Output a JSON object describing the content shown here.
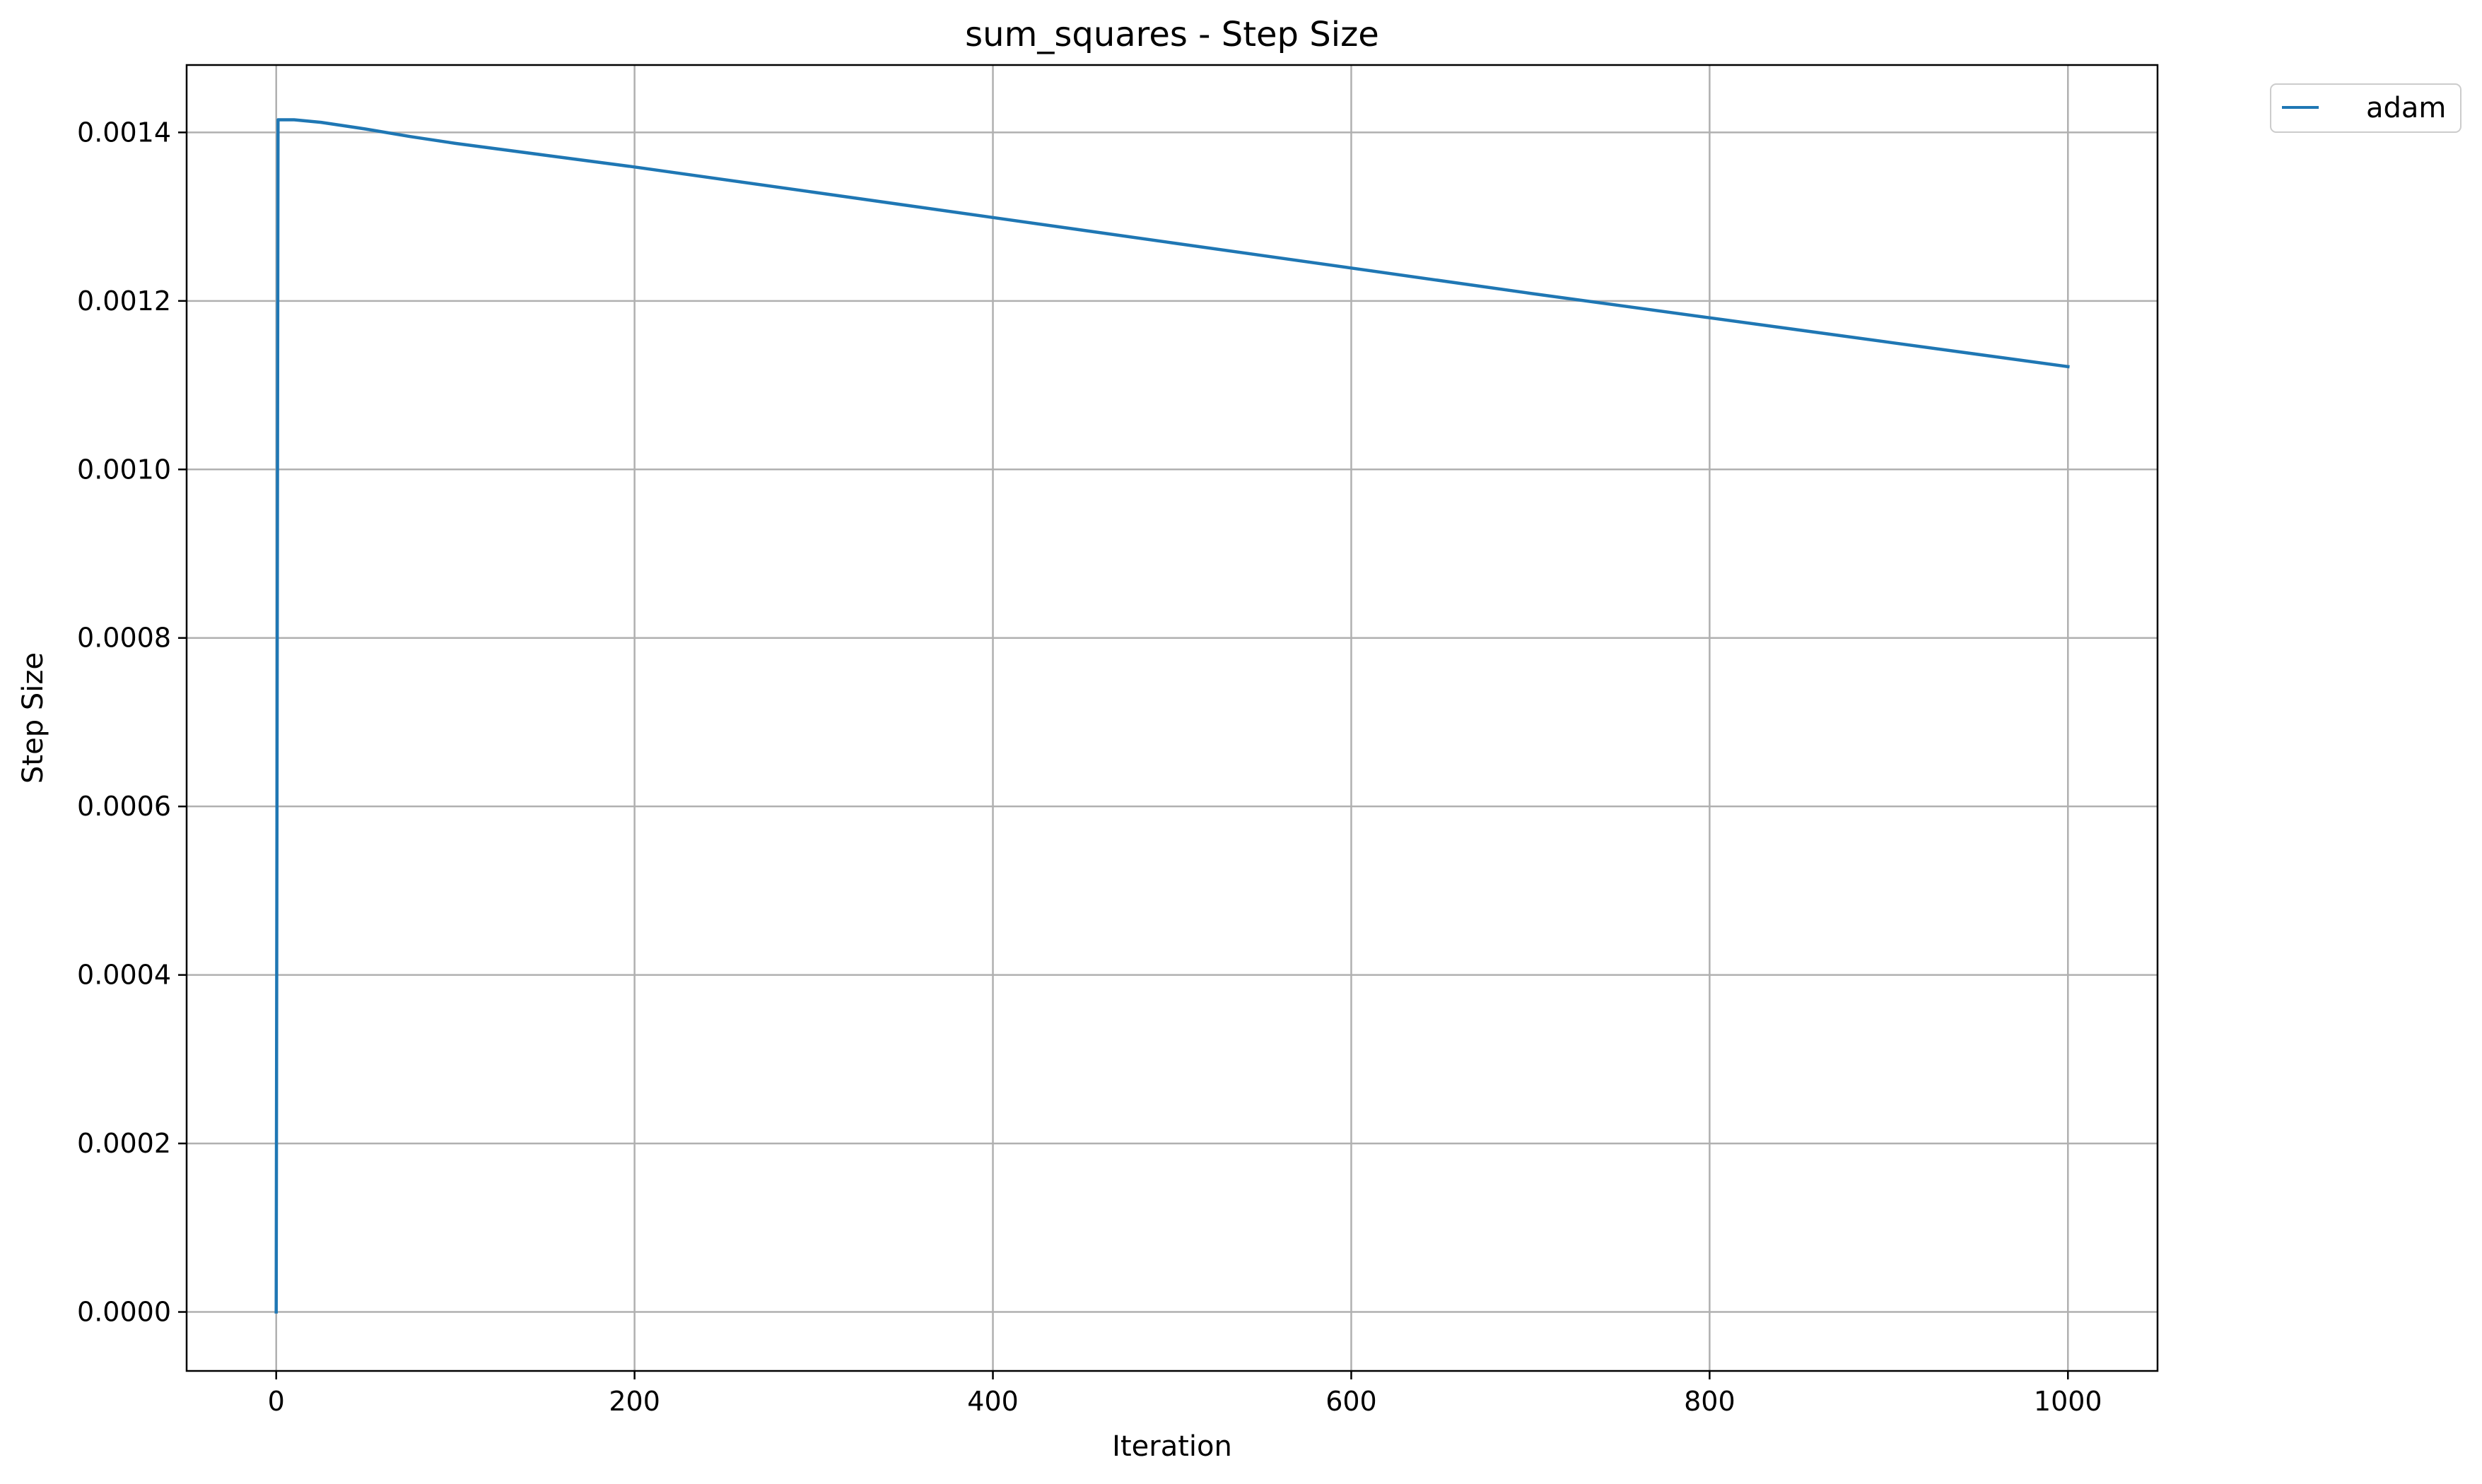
{
  "chart_data": {
    "type": "line",
    "title": "sum_squares - Step Size",
    "xlabel": "Iteration",
    "ylabel": "Step Size",
    "xlim": [
      -50,
      1050
    ],
    "ylim": [
      -7e-05,
      0.00148
    ],
    "xticks": [
      0,
      200,
      400,
      600,
      800,
      1000
    ],
    "xtick_labels": [
      "0",
      "200",
      "400",
      "600",
      "800",
      "1000"
    ],
    "yticks": [
      0.0,
      0.0002,
      0.0004,
      0.0006,
      0.0008,
      0.001,
      0.0012,
      0.0014
    ],
    "ytick_labels": [
      "0.0000",
      "0.0002",
      "0.0004",
      "0.0006",
      "0.0008",
      "0.0010",
      "0.0012",
      "0.0014"
    ],
    "grid": true,
    "legend_placement": "outside-top-right",
    "series": [
      {
        "name": "adam",
        "color": "#1f77b4",
        "x": [
          0,
          1,
          10,
          25,
          50,
          75,
          100,
          150,
          200,
          300,
          400,
          500,
          600,
          700,
          800,
          900,
          1000
        ],
        "y": [
          0.0,
          0.001415,
          0.001415,
          0.001412,
          0.001404,
          0.001395,
          0.001387,
          0.001373,
          0.001359,
          0.001329,
          0.001299,
          0.001269,
          0.001239,
          0.001209,
          0.00118,
          0.001151,
          0.001122
        ]
      }
    ]
  }
}
